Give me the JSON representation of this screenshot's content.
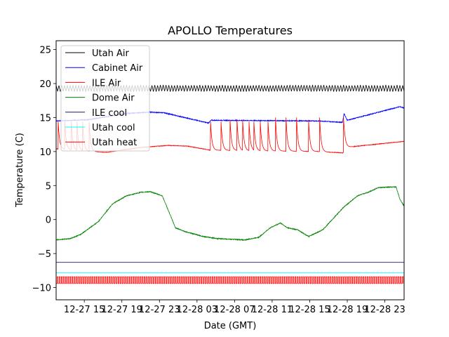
{
  "chart_data": {
    "type": "line",
    "title": "APOLLO Temperatures",
    "xlabel": "Date (GMT)",
    "ylabel": "Temperature (C)",
    "x_units": "hours since 12-27 00:00 GMT",
    "xlim": [
      12,
      49.05
    ],
    "ylim": [
      -11.8,
      26.3
    ],
    "grid": false,
    "legend_placement": "top-left",
    "xticks": [
      {
        "value": 15,
        "label": "12-27 15"
      },
      {
        "value": 19,
        "label": "12-27 19"
      },
      {
        "value": 23,
        "label": "12-27 23"
      },
      {
        "value": 27,
        "label": "12-28 03"
      },
      {
        "value": 31,
        "label": "12-28 07"
      },
      {
        "value": 35,
        "label": "12-28 11"
      },
      {
        "value": 39,
        "label": "12-28 15"
      },
      {
        "value": 43,
        "label": "12-28 19"
      },
      {
        "value": 47,
        "label": "12-28 23"
      }
    ],
    "yticks": [
      {
        "value": 25,
        "label": "25"
      },
      {
        "value": 20,
        "label": "20"
      },
      {
        "value": 15,
        "label": "15"
      },
      {
        "value": 10,
        "label": "10"
      },
      {
        "value": 5,
        "label": "5"
      },
      {
        "value": 0,
        "label": "0"
      },
      {
        "value": -5,
        "label": "−5"
      },
      {
        "value": -10,
        "label": "−10"
      }
    ],
    "series": [
      {
        "name": "Utah Air",
        "color": "#000000",
        "kind": "oscillating",
        "mean": 19.3,
        "amplitude": 0.45,
        "period": 0.3
      },
      {
        "name": "Cabinet Air",
        "color": "#0000ff",
        "kind": "keypoints",
        "points": [
          [
            12,
            14.5
          ],
          [
            15.5,
            14.7
          ],
          [
            19.5,
            15.6
          ],
          [
            22,
            15.8
          ],
          [
            23.5,
            15.7
          ],
          [
            26,
            14.9
          ],
          [
            28.2,
            14.2
          ],
          [
            28.5,
            14.6
          ],
          [
            40,
            14.5
          ],
          [
            42.5,
            14.3
          ],
          [
            42.65,
            15.6
          ],
          [
            43,
            14.6
          ],
          [
            48.6,
            16.6
          ],
          [
            49.05,
            16.4
          ]
        ]
      },
      {
        "name": "ILE Air",
        "color": "#ff0000",
        "kind": "spiky",
        "points": [
          [
            12,
            10.4
          ],
          [
            15.5,
            10.0
          ],
          [
            17.4,
            9.9
          ],
          [
            21,
            10.6
          ],
          [
            23.9,
            10.9
          ],
          [
            26,
            10.8
          ],
          [
            28.4,
            10.2
          ],
          [
            33,
            10.1
          ],
          [
            40,
            10.0
          ],
          [
            42.55,
            9.8
          ],
          [
            42.7,
            10.6
          ],
          [
            49.05,
            11.5
          ]
        ],
        "spikes": [
          12.2,
          12.9,
          13.6,
          14.2,
          14.8,
          15.5,
          28.42,
          29.54,
          30.51,
          31.25,
          31.85,
          32.52,
          33.04,
          33.72,
          34.54,
          35.36,
          36.48,
          37.6,
          38.87,
          40.06,
          42.6
        ],
        "spike_peak": 15.0
      },
      {
        "name": "Dome Air",
        "color": "#008000",
        "kind": "keypoints",
        "points": [
          [
            12,
            -3
          ],
          [
            13.5,
            -2.8
          ],
          [
            14.6,
            -2.2
          ],
          [
            16.5,
            -0.3
          ],
          [
            18,
            2.3
          ],
          [
            19.5,
            3.5
          ],
          [
            21,
            4
          ],
          [
            22,
            4.1
          ],
          [
            23.3,
            3.5
          ],
          [
            23.9,
            1.5
          ],
          [
            24.7,
            -1.2
          ],
          [
            25.8,
            -1.8
          ],
          [
            27.7,
            -2.5
          ],
          [
            29.2,
            -2.8
          ],
          [
            32.1,
            -3.0
          ],
          [
            33.6,
            -2.6
          ],
          [
            34.8,
            -1.2
          ],
          [
            35.9,
            -0.5
          ],
          [
            36.6,
            -1.2
          ],
          [
            37.7,
            -1.5
          ],
          [
            38.9,
            -2.5
          ],
          [
            40.4,
            -1.5
          ],
          [
            42.6,
            1.8
          ],
          [
            44.1,
            3.5
          ],
          [
            45.2,
            4.0
          ],
          [
            46.3,
            4.7
          ],
          [
            48.2,
            4.8
          ],
          [
            48.6,
            3.0
          ],
          [
            49.05,
            2.0
          ]
        ]
      },
      {
        "name": "ILE cool",
        "color": "#191970",
        "kind": "constant",
        "value": -6.3
      },
      {
        "name": "Utah cool",
        "color": "#00ffff",
        "kind": "constant",
        "value": -7.8
      },
      {
        "name": "Utah heat",
        "color": "#ff0000",
        "kind": "square",
        "low": -9.4,
        "high": -8.4,
        "period": 0.22
      }
    ]
  }
}
